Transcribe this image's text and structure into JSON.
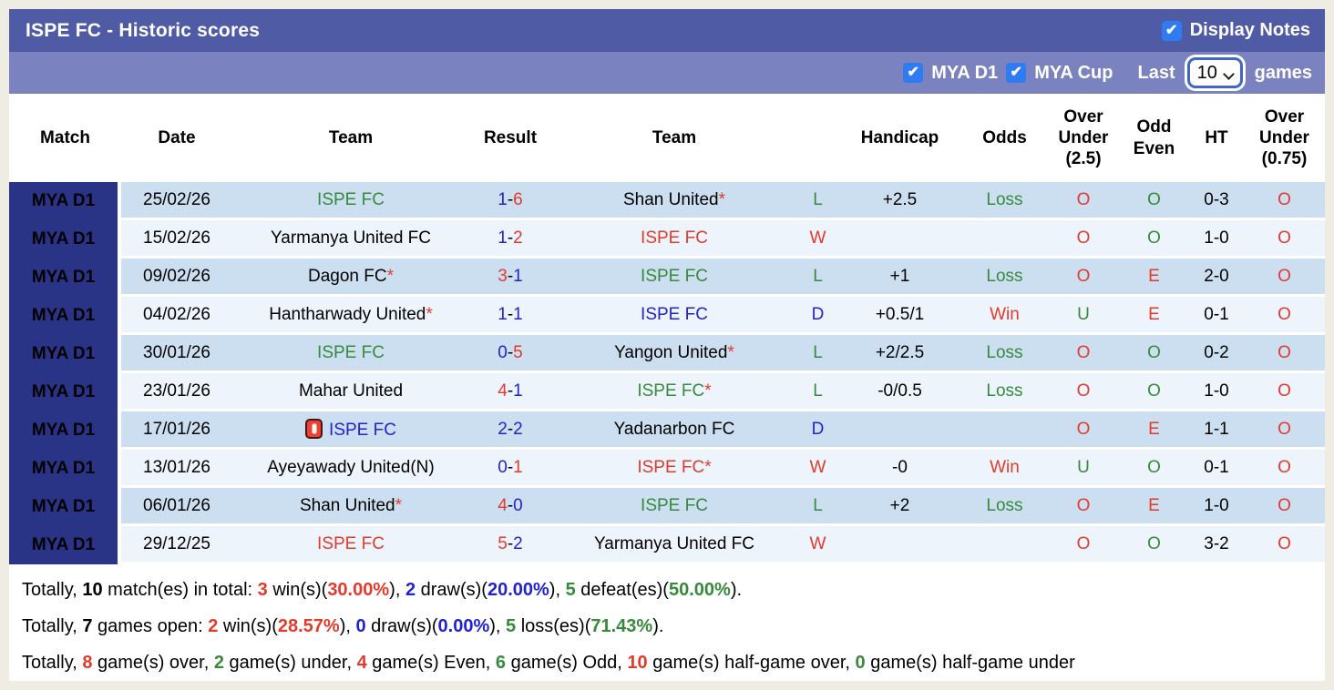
{
  "colors": {
    "red": "#e23b2c",
    "green": "#378a3c",
    "blue": "#2323cc",
    "black": "#000000",
    "bar1_bg": "#4f5ba4",
    "bar2_bg": "#7a83bf",
    "checkbox_blue": "#2e7bf2",
    "match_col_bg": "#2a3487",
    "row_dark": "#cbdff1",
    "row_light": "#edf4fb"
  },
  "header": {
    "title": "ISPE FC - Historic scores",
    "display_notes_label": "Display Notes",
    "display_notes_checked": true
  },
  "filters": {
    "league1_label": "MYA D1",
    "league1_checked": true,
    "league2_label": "MYA Cup",
    "league2_checked": true,
    "last_label": "Last",
    "games_label": "games",
    "last_value": "10",
    "checkmark": "✔"
  },
  "table": {
    "columns": [
      "Match",
      "Date",
      "Team",
      "Result",
      "Team",
      "",
      "Handicap",
      "Odds",
      "Over\nUnder\n(2.5)",
      "Odd\nEven",
      "HT",
      "Over\nUnder\n(0.75)"
    ],
    "rows": [
      {
        "league": "MYA D1",
        "date": "25/02/26",
        "home": {
          "text": "ISPE FC",
          "c": "green",
          "star": false,
          "redcard": false
        },
        "s1": {
          "t": "1",
          "c": "blue"
        },
        "s2": {
          "t": "6",
          "c": "red"
        },
        "away": {
          "text": "Shan United",
          "c": "black",
          "star": true
        },
        "wdl": {
          "t": "L",
          "c": "green"
        },
        "handicap": "+2.5",
        "odds": {
          "t": "Loss",
          "c": "green"
        },
        "ou25": {
          "t": "O",
          "c": "red"
        },
        "oe": {
          "t": "O",
          "c": "green"
        },
        "ht": "0-3",
        "ou075": {
          "t": "O",
          "c": "red"
        }
      },
      {
        "league": "MYA D1",
        "date": "15/02/26",
        "home": {
          "text": "Yarmanya United FC",
          "c": "black",
          "star": false,
          "redcard": false
        },
        "s1": {
          "t": "1",
          "c": "blue"
        },
        "s2": {
          "t": "2",
          "c": "red"
        },
        "away": {
          "text": "ISPE FC",
          "c": "red",
          "star": false
        },
        "wdl": {
          "t": "W",
          "c": "red"
        },
        "handicap": "",
        "odds": {
          "t": "",
          "c": "black"
        },
        "ou25": {
          "t": "O",
          "c": "red"
        },
        "oe": {
          "t": "O",
          "c": "green"
        },
        "ht": "1-0",
        "ou075": {
          "t": "O",
          "c": "red"
        }
      },
      {
        "league": "MYA D1",
        "date": "09/02/26",
        "home": {
          "text": "Dagon FC",
          "c": "black",
          "star": true,
          "redcard": false
        },
        "s1": {
          "t": "3",
          "c": "red"
        },
        "s2": {
          "t": "1",
          "c": "blue"
        },
        "away": {
          "text": "ISPE FC",
          "c": "green",
          "star": false
        },
        "wdl": {
          "t": "L",
          "c": "green"
        },
        "handicap": "+1",
        "odds": {
          "t": "Loss",
          "c": "green"
        },
        "ou25": {
          "t": "O",
          "c": "red"
        },
        "oe": {
          "t": "E",
          "c": "red"
        },
        "ht": "2-0",
        "ou075": {
          "t": "O",
          "c": "red"
        }
      },
      {
        "league": "MYA D1",
        "date": "04/02/26",
        "home": {
          "text": "Hantharwady United",
          "c": "black",
          "star": true,
          "redcard": false
        },
        "s1": {
          "t": "1",
          "c": "blue"
        },
        "s2": {
          "t": "1",
          "c": "blue"
        },
        "away": {
          "text": "ISPE FC",
          "c": "blue",
          "star": false
        },
        "wdl": {
          "t": "D",
          "c": "blue"
        },
        "handicap": "+0.5/1",
        "odds": {
          "t": "Win",
          "c": "red"
        },
        "ou25": {
          "t": "U",
          "c": "green"
        },
        "oe": {
          "t": "E",
          "c": "red"
        },
        "ht": "0-1",
        "ou075": {
          "t": "O",
          "c": "red"
        }
      },
      {
        "league": "MYA D1",
        "date": "30/01/26",
        "home": {
          "text": "ISPE FC",
          "c": "green",
          "star": false,
          "redcard": false
        },
        "s1": {
          "t": "0",
          "c": "blue"
        },
        "s2": {
          "t": "5",
          "c": "red"
        },
        "away": {
          "text": "Yangon United",
          "c": "black",
          "star": true
        },
        "wdl": {
          "t": "L",
          "c": "green"
        },
        "handicap": "+2/2.5",
        "odds": {
          "t": "Loss",
          "c": "green"
        },
        "ou25": {
          "t": "O",
          "c": "red"
        },
        "oe": {
          "t": "O",
          "c": "green"
        },
        "ht": "0-2",
        "ou075": {
          "t": "O",
          "c": "red"
        }
      },
      {
        "league": "MYA D1",
        "date": "23/01/26",
        "home": {
          "text": "Mahar United",
          "c": "black",
          "star": false,
          "redcard": false
        },
        "s1": {
          "t": "4",
          "c": "red"
        },
        "s2": {
          "t": "1",
          "c": "blue"
        },
        "away": {
          "text": "ISPE FC",
          "c": "green",
          "star": true
        },
        "wdl": {
          "t": "L",
          "c": "green"
        },
        "handicap": "-0/0.5",
        "odds": {
          "t": "Loss",
          "c": "green"
        },
        "ou25": {
          "t": "O",
          "c": "red"
        },
        "oe": {
          "t": "O",
          "c": "green"
        },
        "ht": "1-0",
        "ou075": {
          "t": "O",
          "c": "red"
        }
      },
      {
        "league": "MYA D1",
        "date": "17/01/26",
        "home": {
          "text": "ISPE FC",
          "c": "blue",
          "star": false,
          "redcard": true
        },
        "s1": {
          "t": "2",
          "c": "blue"
        },
        "s2": {
          "t": "2",
          "c": "blue"
        },
        "away": {
          "text": "Yadanarbon FC",
          "c": "black",
          "star": false
        },
        "wdl": {
          "t": "D",
          "c": "blue"
        },
        "handicap": "",
        "odds": {
          "t": "",
          "c": "black"
        },
        "ou25": {
          "t": "O",
          "c": "red"
        },
        "oe": {
          "t": "E",
          "c": "red"
        },
        "ht": "1-1",
        "ou075": {
          "t": "O",
          "c": "red"
        }
      },
      {
        "league": "MYA D1",
        "date": "13/01/26",
        "home": {
          "text": "Ayeyawady United(N)",
          "c": "black",
          "star": false,
          "redcard": false
        },
        "s1": {
          "t": "0",
          "c": "blue"
        },
        "s2": {
          "t": "1",
          "c": "red"
        },
        "away": {
          "text": "ISPE FC",
          "c": "red",
          "star": true
        },
        "wdl": {
          "t": "W",
          "c": "red"
        },
        "handicap": "-0",
        "odds": {
          "t": "Win",
          "c": "red"
        },
        "ou25": {
          "t": "U",
          "c": "green"
        },
        "oe": {
          "t": "O",
          "c": "green"
        },
        "ht": "0-1",
        "ou075": {
          "t": "O",
          "c": "red"
        }
      },
      {
        "league": "MYA D1",
        "date": "06/01/26",
        "home": {
          "text": "Shan United",
          "c": "black",
          "star": true,
          "redcard": false
        },
        "s1": {
          "t": "4",
          "c": "red"
        },
        "s2": {
          "t": "0",
          "c": "blue"
        },
        "away": {
          "text": "ISPE FC",
          "c": "green",
          "star": false
        },
        "wdl": {
          "t": "L",
          "c": "green"
        },
        "handicap": "+2",
        "odds": {
          "t": "Loss",
          "c": "green"
        },
        "ou25": {
          "t": "O",
          "c": "red"
        },
        "oe": {
          "t": "E",
          "c": "red"
        },
        "ht": "1-0",
        "ou075": {
          "t": "O",
          "c": "red"
        }
      },
      {
        "league": "MYA D1",
        "date": "29/12/25",
        "home": {
          "text": "ISPE FC",
          "c": "red",
          "star": false,
          "redcard": false
        },
        "s1": {
          "t": "5",
          "c": "red"
        },
        "s2": {
          "t": "2",
          "c": "blue"
        },
        "away": {
          "text": "Yarmanya United FC",
          "c": "black",
          "star": false
        },
        "wdl": {
          "t": "W",
          "c": "red"
        },
        "handicap": "",
        "odds": {
          "t": "",
          "c": "black"
        },
        "ou25": {
          "t": "O",
          "c": "red"
        },
        "oe": {
          "t": "O",
          "c": "green"
        },
        "ht": "3-2",
        "ou075": {
          "t": "O",
          "c": "red"
        }
      }
    ]
  },
  "summary": {
    "lines": [
      [
        {
          "t": "Totally, ",
          "c": "black"
        },
        {
          "t": "10",
          "c": "black",
          "b": true
        },
        {
          "t": " match(es) in total: ",
          "c": "black"
        },
        {
          "t": "3",
          "c": "red",
          "b": true
        },
        {
          "t": " win(s)(",
          "c": "black"
        },
        {
          "t": "30.00%",
          "c": "red",
          "b": true
        },
        {
          "t": "), ",
          "c": "black"
        },
        {
          "t": "2",
          "c": "blue",
          "b": true
        },
        {
          "t": " draw(s)(",
          "c": "black"
        },
        {
          "t": "20.00%",
          "c": "blue",
          "b": true
        },
        {
          "t": "), ",
          "c": "black"
        },
        {
          "t": "5",
          "c": "green",
          "b": true
        },
        {
          "t": " defeat(es)(",
          "c": "black"
        },
        {
          "t": "50.00%",
          "c": "green",
          "b": true
        },
        {
          "t": ").",
          "c": "black"
        }
      ],
      [
        {
          "t": "Totally, ",
          "c": "black"
        },
        {
          "t": "7",
          "c": "black",
          "b": true
        },
        {
          "t": " games open: ",
          "c": "black"
        },
        {
          "t": "2",
          "c": "red",
          "b": true
        },
        {
          "t": " win(s)(",
          "c": "black"
        },
        {
          "t": "28.57%",
          "c": "red",
          "b": true
        },
        {
          "t": "), ",
          "c": "black"
        },
        {
          "t": "0",
          "c": "blue",
          "b": true
        },
        {
          "t": " draw(s)(",
          "c": "black"
        },
        {
          "t": "0.00%",
          "c": "blue",
          "b": true
        },
        {
          "t": "), ",
          "c": "black"
        },
        {
          "t": "5",
          "c": "green",
          "b": true
        },
        {
          "t": " loss(es)(",
          "c": "black"
        },
        {
          "t": "71.43%",
          "c": "green",
          "b": true
        },
        {
          "t": ").",
          "c": "black"
        }
      ],
      [
        {
          "t": "Totally, ",
          "c": "black"
        },
        {
          "t": "8",
          "c": "red",
          "b": true
        },
        {
          "t": " game(s) over, ",
          "c": "black"
        },
        {
          "t": "2",
          "c": "green",
          "b": true
        },
        {
          "t": " game(s) under, ",
          "c": "black"
        },
        {
          "t": "4",
          "c": "red",
          "b": true
        },
        {
          "t": " game(s) Even, ",
          "c": "black"
        },
        {
          "t": "6",
          "c": "green",
          "b": true
        },
        {
          "t": " game(s) Odd, ",
          "c": "black"
        },
        {
          "t": "10",
          "c": "red",
          "b": true
        },
        {
          "t": " game(s) half-game over, ",
          "c": "black"
        },
        {
          "t": "0",
          "c": "green",
          "b": true
        },
        {
          "t": " game(s) half-game under",
          "c": "black"
        }
      ]
    ]
  }
}
